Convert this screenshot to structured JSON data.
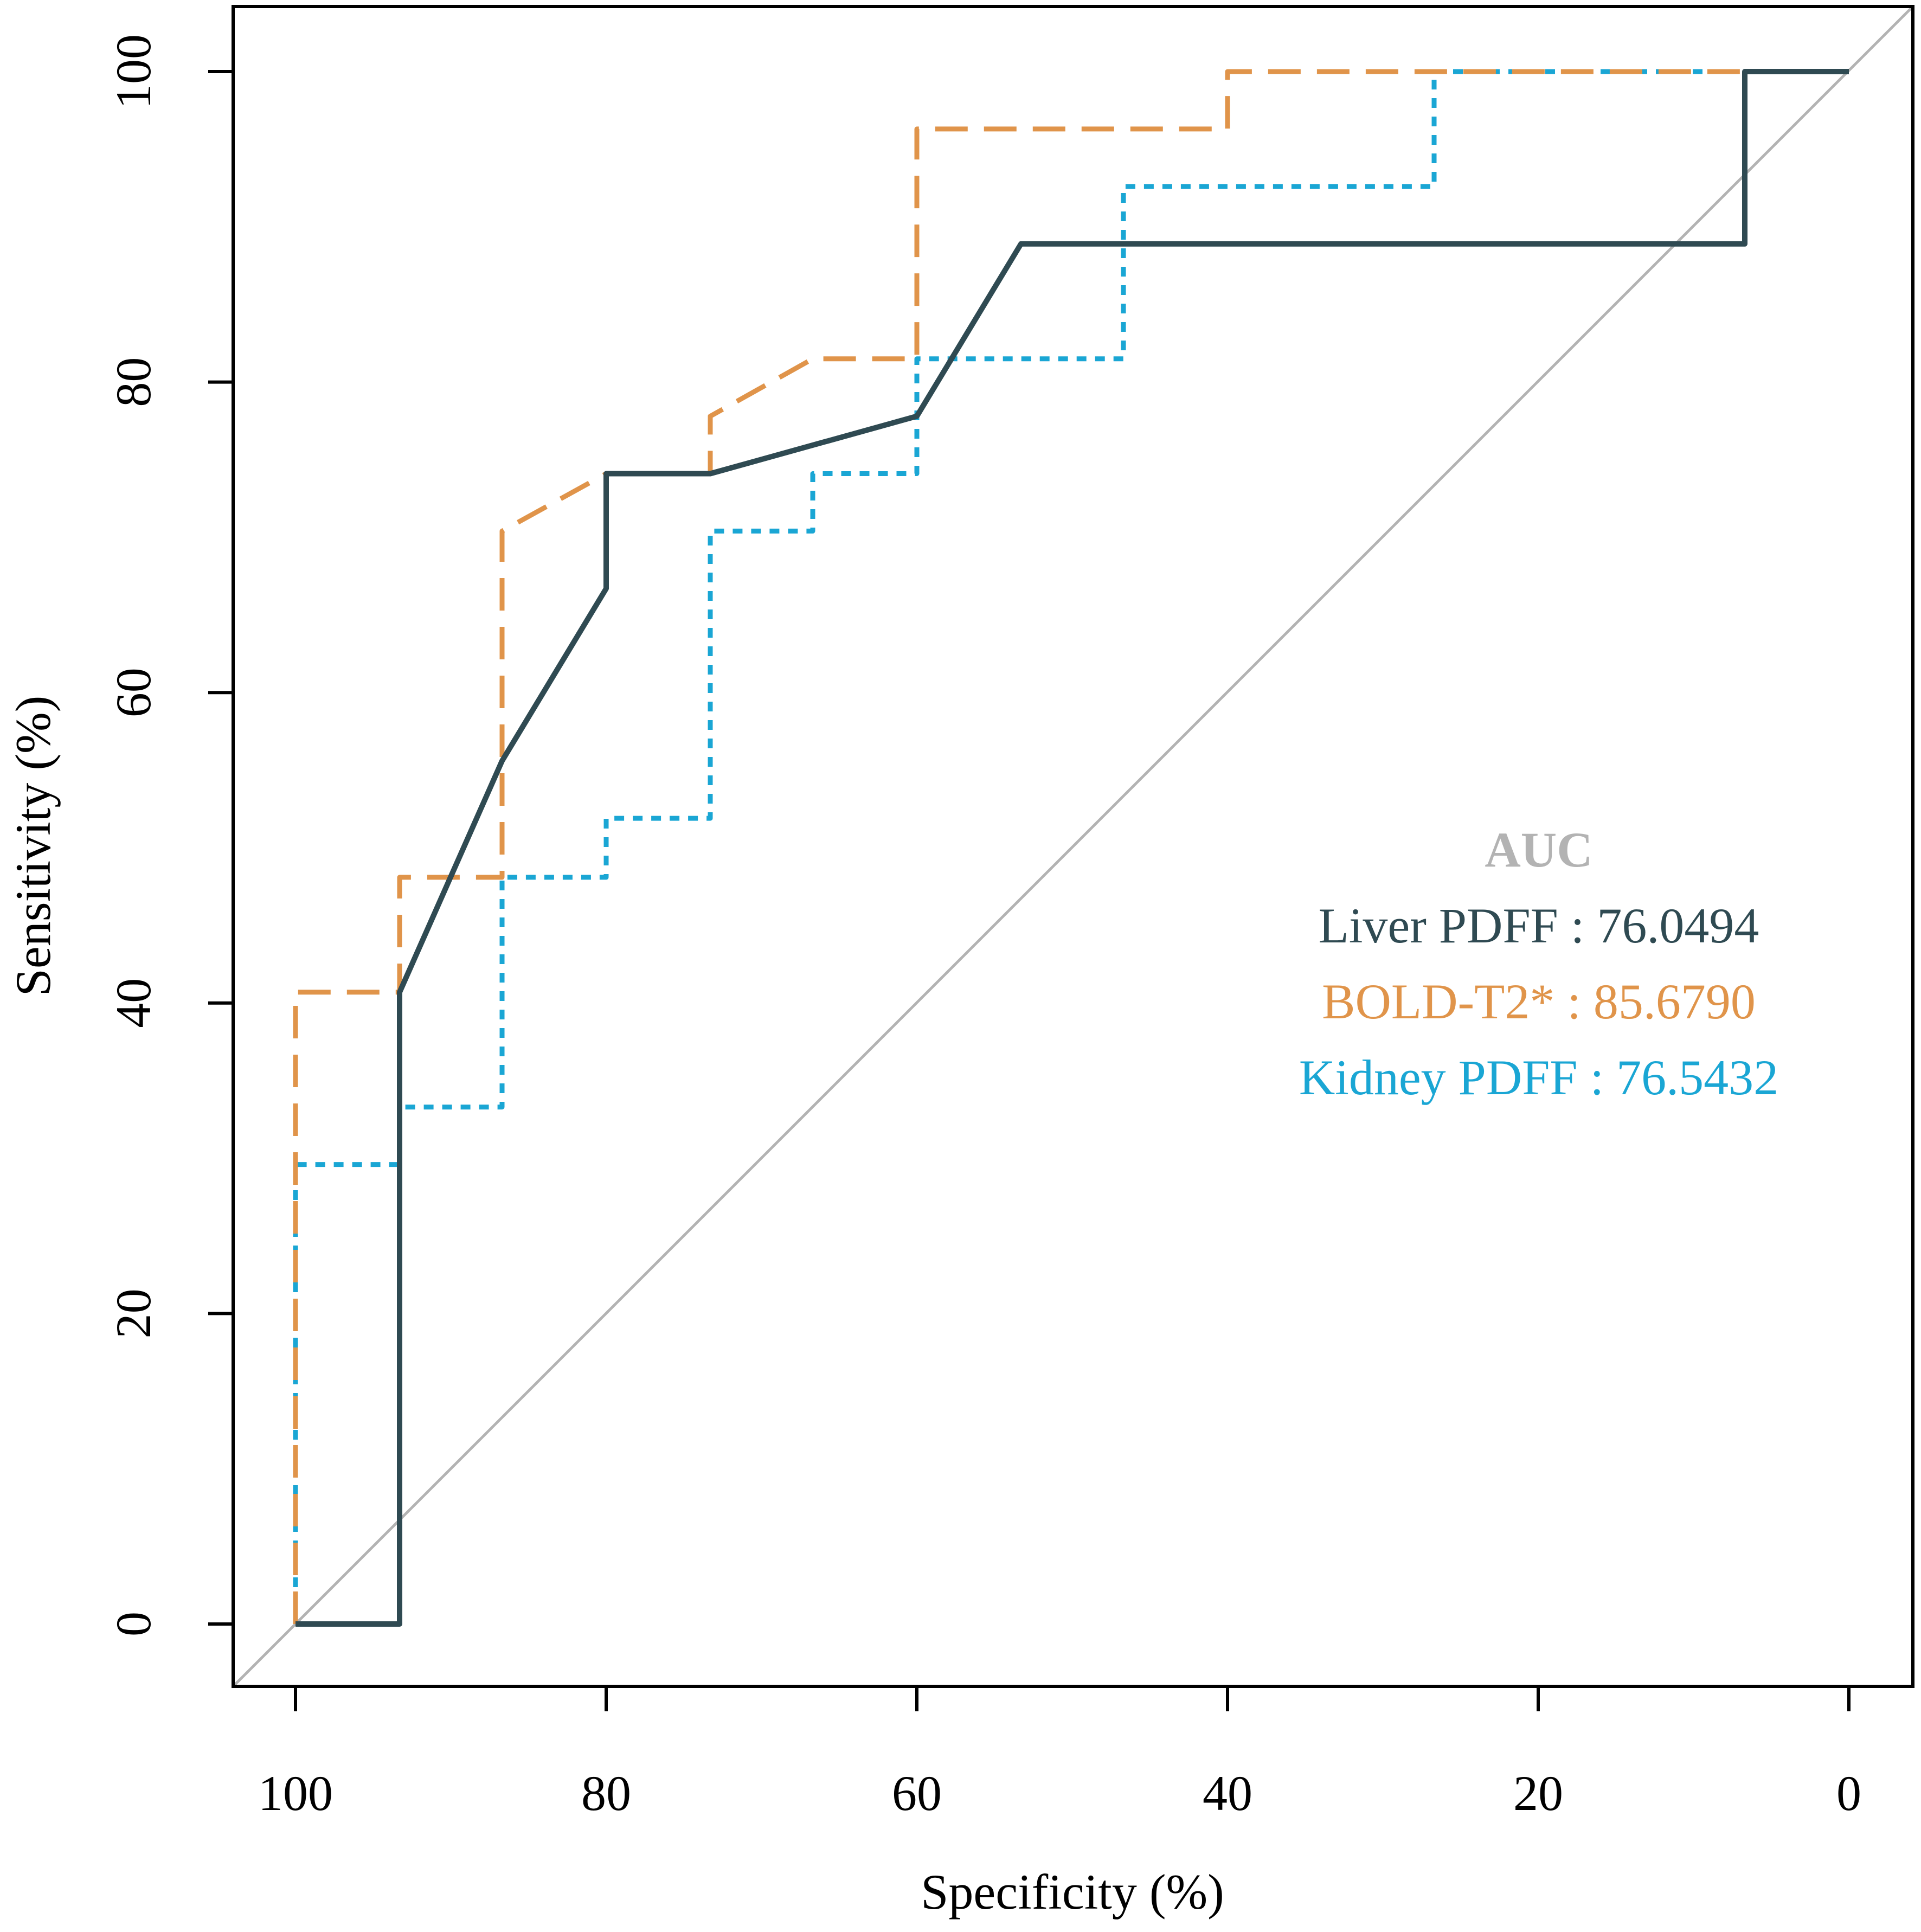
{
  "chart_data": {
    "type": "line",
    "subtype": "roc",
    "title": "",
    "xlabel": "Specificity (%)",
    "ylabel": "Sensitivity (%)",
    "xlim": [
      100,
      0
    ],
    "ylim": [
      0,
      100
    ],
    "x_ticks": [
      100,
      80,
      60,
      40,
      20,
      0
    ],
    "y_ticks": [
      0,
      20,
      40,
      60,
      80,
      100
    ],
    "grid": false,
    "reference_line": {
      "from": [
        100,
        0
      ],
      "to": [
        0,
        100
      ],
      "color": "#b3b3b3"
    },
    "legend": {
      "title": "AUC",
      "title_color": "#b3b3b3",
      "placement": "center-right",
      "entries": [
        {
          "label": "Liver PDFF : 76.0494",
          "color": "#2f4a52"
        },
        {
          "label": "BOLD-T2* : 85.6790",
          "color": "#e0944a"
        },
        {
          "label": "Kidney PDFF : 76.5432",
          "color": "#1aa6d4"
        }
      ]
    },
    "series": [
      {
        "name": "Liver PDFF",
        "color": "#2f4a52",
        "style": "solid",
        "x": [
          100,
          93.3,
          93.3,
          86.7,
          80,
          80,
          73.3,
          60,
          53.3,
          6.7,
          6.7,
          0
        ],
        "y": [
          0,
          0,
          40.7,
          55.6,
          66.7,
          74.1,
          74.1,
          77.8,
          88.9,
          88.9,
          100,
          100
        ]
      },
      {
        "name": "BOLD-T2*",
        "color": "#e0944a",
        "style": "dashed",
        "x": [
          100,
          100,
          93.3,
          93.3,
          86.7,
          86.7,
          80,
          73.3,
          73.3,
          66.7,
          60,
          60,
          40,
          40,
          0
        ],
        "y": [
          0,
          40.7,
          40.7,
          48.1,
          48.1,
          70.4,
          74.1,
          74.1,
          77.8,
          81.5,
          81.5,
          96.3,
          96.3,
          100,
          100
        ]
      },
      {
        "name": "Kidney PDFF",
        "color": "#1aa6d4",
        "style": "dotted",
        "x": [
          100,
          100,
          93.3,
          93.3,
          86.7,
          86.7,
          80,
          80,
          73.3,
          73.3,
          66.7,
          66.7,
          60,
          60,
          46.7,
          46.7,
          26.7,
          26.7,
          0
        ],
        "y": [
          0,
          29.6,
          29.6,
          33.3,
          33.3,
          48.1,
          48.1,
          51.9,
          51.9,
          70.4,
          70.4,
          74.1,
          74.1,
          81.5,
          81.5,
          92.6,
          92.6,
          100,
          100
        ]
      }
    ]
  }
}
